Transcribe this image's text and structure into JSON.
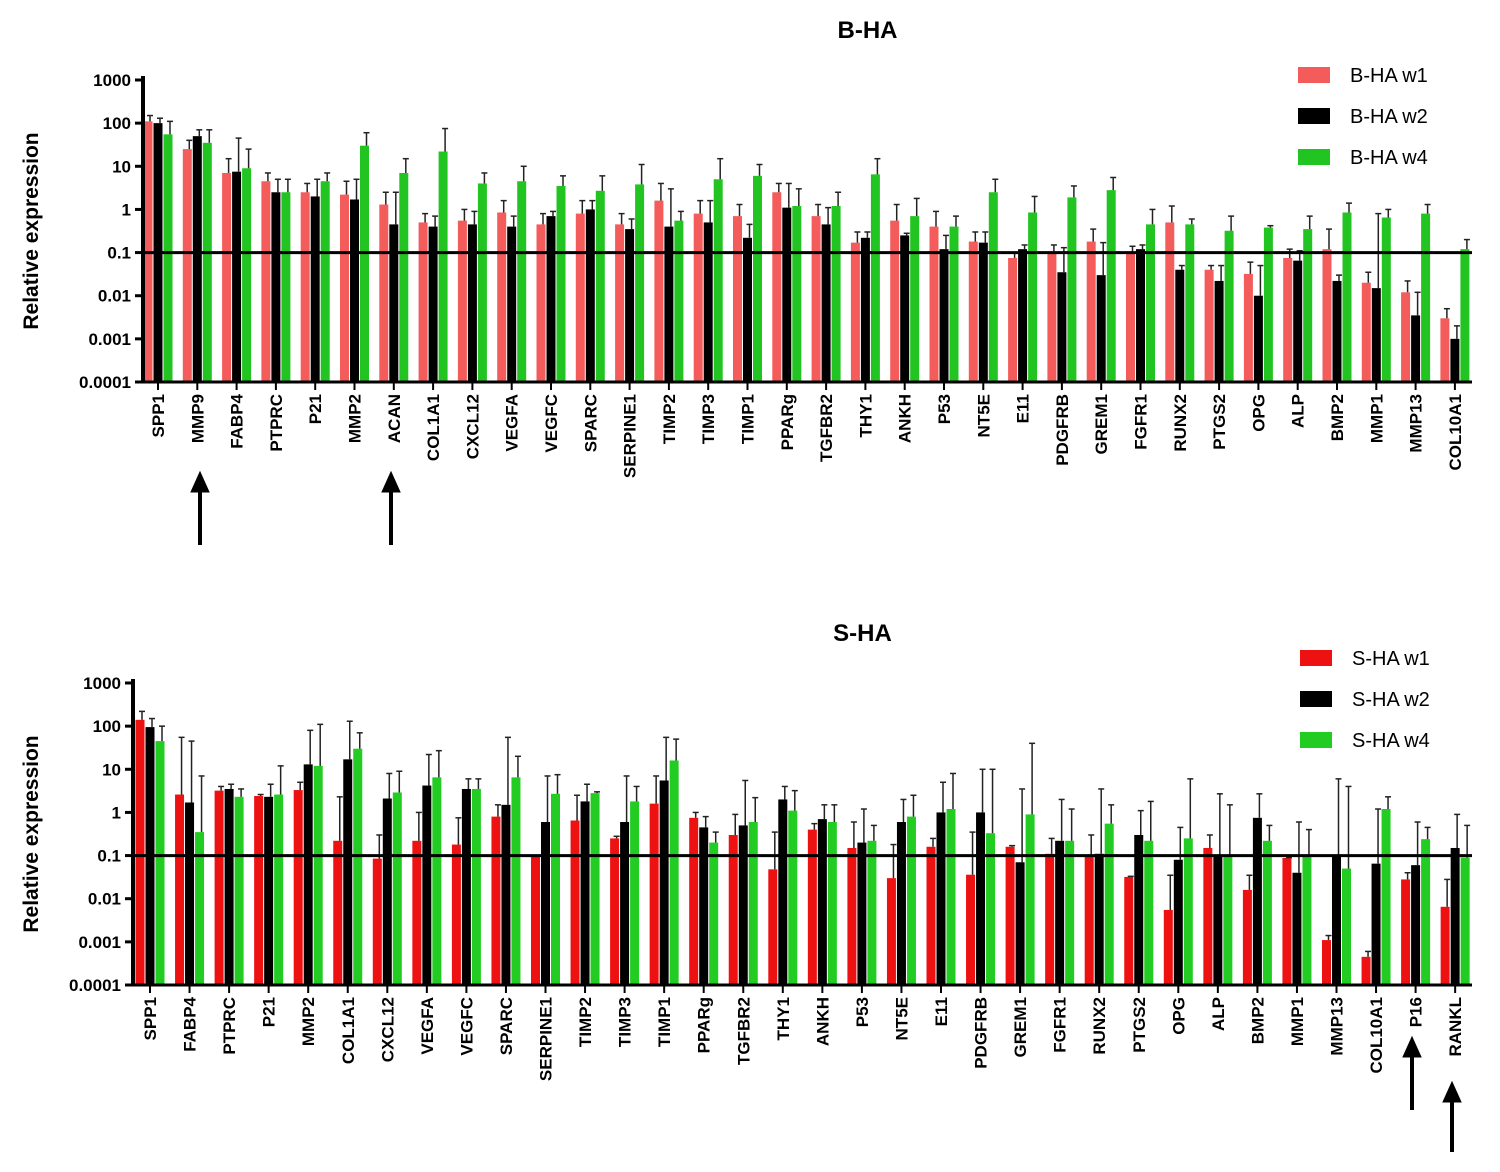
{
  "chart_data": [
    {
      "type": "bar",
      "title": "B-HA",
      "y_label": "Relative expression",
      "categories": [
        "SPP1",
        "MMP9",
        "FABP4",
        "PTPRC",
        "P21",
        "MMP2",
        "ACAN",
        "COL1A1",
        "CXCL12",
        "VEGFA",
        "VEGFC",
        "SPARC",
        "SERPINE1",
        "TIMP2",
        "TIMP3",
        "TIMP1",
        "PPARg",
        "TGFBR2",
        "THY1",
        "ANKH",
        "P53",
        "NT5E",
        "E11",
        "PDGFRB",
        "GREM1",
        "FGFR1",
        "RUNX2",
        "PTGS2",
        "OPG",
        "ALP",
        "BMP2",
        "MMP1",
        "MMP13",
        "COL10A1"
      ],
      "series": [
        {
          "name": "B-HA w1",
          "color": "#f45b5b",
          "values": [
            110,
            25,
            7,
            4.5,
            2.5,
            2.2,
            1.3,
            0.5,
            0.55,
            0.85,
            0.45,
            0.8,
            0.45,
            1.6,
            0.8,
            0.7,
            2.5,
            0.7,
            0.17,
            0.55,
            0.4,
            0.18,
            0.075,
            0.1,
            0.18,
            0.1,
            0.5,
            0.04,
            0.032,
            0.075,
            0.12,
            0.02,
            0.012,
            0.003
          ],
          "error_upper": [
            150,
            40,
            15,
            7,
            4,
            4.5,
            2.5,
            0.8,
            1,
            1.6,
            0.8,
            1.6,
            0.8,
            4,
            1.6,
            1.3,
            4,
            1.3,
            0.3,
            1.3,
            0.9,
            0.3,
            0.1,
            0.15,
            0.35,
            0.14,
            1.2,
            0.05,
            0.06,
            0.12,
            0.35,
            0.035,
            0.022,
            0.005
          ]
        },
        {
          "name": "B-HA w2",
          "color": "#000000",
          "values": [
            100,
            50,
            7.5,
            2.5,
            2,
            1.7,
            0.45,
            0.4,
            0.45,
            0.4,
            0.7,
            1,
            0.35,
            0.4,
            0.5,
            0.22,
            1.1,
            0.45,
            0.22,
            0.25,
            0.12,
            0.17,
            0.12,
            0.035,
            0.03,
            0.12,
            0.04,
            0.022,
            0.01,
            0.065,
            0.022,
            0.015,
            0.0035,
            0.001
          ],
          "error_upper": [
            130,
            70,
            45,
            5,
            5,
            5,
            2.5,
            0.7,
            0.9,
            0.7,
            0.9,
            1.6,
            0.6,
            3,
            1.6,
            0.45,
            4,
            1.1,
            0.3,
            0.28,
            0.25,
            0.3,
            0.15,
            0.13,
            0.17,
            0.15,
            0.05,
            0.05,
            0.05,
            0.11,
            0.03,
            0.8,
            0.012,
            0.002
          ]
        },
        {
          "name": "B-HA w4",
          "color": "#22c422",
          "values": [
            55,
            35,
            9,
            2.5,
            4.5,
            30,
            7,
            22,
            4,
            4.5,
            3.5,
            2.7,
            3.8,
            0.55,
            5,
            6,
            1.2,
            1.2,
            6.5,
            0.7,
            0.4,
            2.5,
            0.85,
            1.9,
            2.8,
            0.45,
            0.45,
            0.32,
            0.38,
            0.35,
            0.85,
            0.65,
            0.8,
            0.12
          ],
          "error_upper": [
            110,
            70,
            25,
            5,
            7,
            60,
            15,
            75,
            7,
            10,
            6,
            6,
            11,
            0.9,
            15,
            11,
            3,
            2.5,
            15,
            1.8,
            0.7,
            5,
            2,
            3.5,
            5.5,
            1,
            0.6,
            0.7,
            0.42,
            0.7,
            1.4,
            1,
            1.3,
            0.2
          ]
        }
      ],
      "ylim": [
        0.0001,
        1000
      ],
      "yticks": [
        0.0001,
        0.001,
        0.01,
        0.1,
        1,
        10,
        100,
        1000
      ],
      "log_scale": true,
      "reference_line": 0.1,
      "legend": "upper right"
    },
    {
      "type": "bar",
      "title": "S-HA",
      "y_label": "Relative expression",
      "categories": [
        "SPP1",
        "FABP4",
        "PTPRC",
        "P21",
        "MMP2",
        "COL1A1",
        "CXCL12",
        "VEGFA",
        "VEGFC",
        "SPARC",
        "SERPINE1",
        "TIMP2",
        "TIMP3",
        "TIMP1",
        "PPARg",
        "TGFBR2",
        "THY1",
        "ANKH",
        "P53",
        "NT5E",
        "E11",
        "PDGFRB",
        "GREM1",
        "FGFR1",
        "RUNX2",
        "PTGS2",
        "OPG",
        "ALP",
        "BMP2",
        "MMP1",
        "MMP13",
        "COL10A1",
        "P16",
        "RANKL"
      ],
      "series": [
        {
          "name": "S-HA w1",
          "color": "#ee1111",
          "values": [
            140,
            2.6,
            3.2,
            2.4,
            3.3,
            0.22,
            0.085,
            0.22,
            0.18,
            0.8,
            0.1,
            0.65,
            0.25,
            1.6,
            0.75,
            0.3,
            0.048,
            0.4,
            0.15,
            0.03,
            0.16,
            0.036,
            0.16,
            0.11,
            0.1,
            0.032,
            0.0055,
            0.15,
            0.016,
            0.088,
            0.0011,
            0.00045,
            0.028,
            0.0065
          ],
          "error_upper": [
            220,
            55,
            4,
            2.6,
            5,
            2.3,
            0.3,
            1,
            0.75,
            1.5,
            0.1,
            2.5,
            0.28,
            7,
            1,
            0.9,
            0.35,
            0.55,
            0.6,
            0.18,
            0.25,
            0.35,
            0.17,
            0.25,
            0.3,
            0.033,
            0.035,
            0.3,
            0.035,
            0.09,
            0.0014,
            0.0006,
            0.04,
            0.028
          ]
        },
        {
          "name": "S-HA w2",
          "color": "#000000",
          "values": [
            95,
            1.7,
            3.5,
            2.3,
            13,
            17,
            2.1,
            4.2,
            3.5,
            1.5,
            0.6,
            1.8,
            0.6,
            5.5,
            0.45,
            0.5,
            2,
            0.7,
            0.2,
            0.6,
            1,
            1,
            0.07,
            0.22,
            0.11,
            0.3,
            0.08,
            0.1,
            0.75,
            0.04,
            0.1,
            0.065,
            0.06,
            0.15
          ],
          "error_upper": [
            150,
            45,
            4.5,
            4.5,
            80,
            130,
            8,
            22,
            6,
            55,
            7,
            4.5,
            7,
            55,
            0.8,
            5.5,
            4,
            1.5,
            1.2,
            2,
            5,
            10,
            3.5,
            2,
            3.5,
            1.1,
            0.45,
            2.7,
            2.7,
            0.6,
            6,
            1.2,
            0.6,
            0.9
          ]
        },
        {
          "name": "S-HA w4",
          "color": "#22cc22",
          "values": [
            45,
            0.35,
            2.3,
            2.6,
            12,
            30,
            2.9,
            6.5,
            3.5,
            6.5,
            2.7,
            2.8,
            1.8,
            16,
            0.2,
            0.6,
            1.1,
            0.6,
            0.22,
            0.8,
            1.2,
            0.33,
            0.9,
            0.22,
            0.55,
            0.22,
            0.25,
            0.1,
            0.22,
            0.1,
            0.05,
            1.2,
            0.24,
            0.09
          ],
          "error_upper": [
            100,
            7,
            3.5,
            12,
            110,
            70,
            9,
            27,
            6,
            20,
            7.5,
            3,
            4,
            50,
            0.35,
            2.2,
            3.2,
            1.5,
            0.5,
            2.5,
            8,
            10,
            40,
            1.2,
            1.5,
            1.8,
            6,
            1.5,
            0.5,
            0.4,
            4,
            2.3,
            0.45,
            0.5
          ]
        }
      ],
      "ylim": [
        0.0001,
        1000
      ],
      "yticks": [
        0.0001,
        0.001,
        0.01,
        0.1,
        1,
        10,
        100,
        1000
      ],
      "log_scale": true,
      "reference_line": 0.1,
      "legend": "upper right"
    }
  ]
}
